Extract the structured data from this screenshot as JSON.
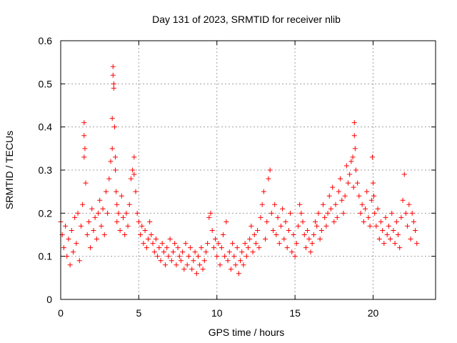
{
  "chart_data": {
    "type": "scatter",
    "title": "Day 131 of 2023, SRMTID for receiver nlib",
    "xlabel": "GPS time / hours",
    "ylabel": "SRMTID / TECUs",
    "xlim": [
      0,
      24
    ],
    "ylim": [
      0,
      0.6
    ],
    "xticks": [
      0,
      5,
      10,
      15,
      20
    ],
    "yticks": [
      0,
      0.1,
      0.2,
      0.3,
      0.4,
      0.5,
      0.6
    ],
    "xtick_labels": [
      "0",
      "5",
      "10",
      "15",
      "20"
    ],
    "ytick_labels": [
      "0",
      "0.1",
      "0.2",
      "0.3",
      "0.4",
      "0.5",
      "0.6"
    ],
    "grid": true,
    "marker": "+",
    "color": "#ff0000",
    "series": [
      {
        "name": "SRMTID",
        "x": [
          0.0,
          0.1,
          0.2,
          0.3,
          0.4,
          0.5,
          0.6,
          0.7,
          0.8,
          0.9,
          1.0,
          1.1,
          1.2,
          1.3,
          1.4,
          1.5,
          1.5,
          1.5,
          1.55,
          1.6,
          1.7,
          1.8,
          1.9,
          2.0,
          2.1,
          2.2,
          2.3,
          2.4,
          2.5,
          2.6,
          2.7,
          2.8,
          2.9,
          3.0,
          3.1,
          3.2,
          3.3,
          3.3,
          3.35,
          3.35,
          3.4,
          3.4,
          3.45,
          3.5,
          3.5,
          3.55,
          3.6,
          3.6,
          3.7,
          3.8,
          3.9,
          4.0,
          4.1,
          4.2,
          4.3,
          4.4,
          4.5,
          4.6,
          4.7,
          4.7,
          4.8,
          4.9,
          5.0,
          5.1,
          5.2,
          5.3,
          5.4,
          5.5,
          5.6,
          5.7,
          5.8,
          5.9,
          6.0,
          6.1,
          6.2,
          6.3,
          6.4,
          6.5,
          6.6,
          6.7,
          6.8,
          6.9,
          7.0,
          7.1,
          7.2,
          7.3,
          7.4,
          7.5,
          7.6,
          7.7,
          7.8,
          7.9,
          8.0,
          8.1,
          8.2,
          8.3,
          8.4,
          8.5,
          8.6,
          8.7,
          8.8,
          8.9,
          9.0,
          9.1,
          9.2,
          9.3,
          9.4,
          9.5,
          9.6,
          9.7,
          9.8,
          9.9,
          10.0,
          10.1,
          10.2,
          10.3,
          10.4,
          10.5,
          10.6,
          10.7,
          10.8,
          10.9,
          11.0,
          11.1,
          11.2,
          11.3,
          11.4,
          11.5,
          11.6,
          11.7,
          11.8,
          11.9,
          12.0,
          12.1,
          12.2,
          12.3,
          12.4,
          12.5,
          12.6,
          12.7,
          12.8,
          12.9,
          13.0,
          13.1,
          13.2,
          13.3,
          13.4,
          13.5,
          13.6,
          13.7,
          13.8,
          13.9,
          14.0,
          14.1,
          14.2,
          14.3,
          14.4,
          14.5,
          14.6,
          14.7,
          14.8,
          14.9,
          15.0,
          15.1,
          15.2,
          15.3,
          15.4,
          15.5,
          15.6,
          15.7,
          15.8,
          15.9,
          16.0,
          16.1,
          16.2,
          16.3,
          16.4,
          16.5,
          16.6,
          16.7,
          16.8,
          16.9,
          17.0,
          17.1,
          17.2,
          17.3,
          17.4,
          17.5,
          17.6,
          17.7,
          17.8,
          17.9,
          18.0,
          18.1,
          18.2,
          18.3,
          18.4,
          18.5,
          18.6,
          18.7,
          18.75,
          18.8,
          18.8,
          18.85,
          18.9,
          19.0,
          19.1,
          19.2,
          19.3,
          19.4,
          19.5,
          19.6,
          19.7,
          19.8,
          19.9,
          19.95,
          20.0,
          20.05,
          20.1,
          20.2,
          20.3,
          20.4,
          20.5,
          20.6,
          20.7,
          20.8,
          20.9,
          21.0,
          21.1,
          21.2,
          21.3,
          21.4,
          21.5,
          21.6,
          21.7,
          21.8,
          21.9,
          22.0,
          22.1,
          22.2,
          22.3,
          22.4,
          22.5,
          22.6,
          22.7,
          22.8
        ],
        "y": [
          0.18,
          0.15,
          0.12,
          0.17,
          0.1,
          0.14,
          0.08,
          0.16,
          0.11,
          0.19,
          0.13,
          0.2,
          0.09,
          0.17,
          0.22,
          0.41,
          0.38,
          0.33,
          0.35,
          0.27,
          0.15,
          0.18,
          0.12,
          0.21,
          0.16,
          0.19,
          0.14,
          0.2,
          0.23,
          0.17,
          0.21,
          0.15,
          0.25,
          0.2,
          0.28,
          0.32,
          0.35,
          0.42,
          0.54,
          0.52,
          0.5,
          0.49,
          0.4,
          0.33,
          0.3,
          0.25,
          0.22,
          0.18,
          0.2,
          0.16,
          0.24,
          0.19,
          0.15,
          0.2,
          0.17,
          0.22,
          0.28,
          0.3,
          0.29,
          0.33,
          0.25,
          0.2,
          0.18,
          0.15,
          0.17,
          0.13,
          0.16,
          0.12,
          0.14,
          0.18,
          0.15,
          0.13,
          0.11,
          0.14,
          0.1,
          0.12,
          0.09,
          0.13,
          0.11,
          0.08,
          0.12,
          0.1,
          0.14,
          0.09,
          0.11,
          0.13,
          0.08,
          0.12,
          0.1,
          0.09,
          0.11,
          0.07,
          0.13,
          0.08,
          0.1,
          0.12,
          0.07,
          0.09,
          0.11,
          0.06,
          0.1,
          0.08,
          0.12,
          0.07,
          0.09,
          0.11,
          0.13,
          0.19,
          0.2,
          0.16,
          0.12,
          0.14,
          0.1,
          0.13,
          0.08,
          0.12,
          0.15,
          0.1,
          0.18,
          0.09,
          0.11,
          0.07,
          0.13,
          0.1,
          0.08,
          0.12,
          0.06,
          0.09,
          0.11,
          0.08,
          0.13,
          0.1,
          0.12,
          0.14,
          0.17,
          0.11,
          0.15,
          0.13,
          0.16,
          0.12,
          0.19,
          0.22,
          0.25,
          0.14,
          0.18,
          0.28,
          0.3,
          0.2,
          0.16,
          0.22,
          0.15,
          0.19,
          0.13,
          0.17,
          0.21,
          0.14,
          0.18,
          0.12,
          0.16,
          0.2,
          0.11,
          0.15,
          0.1,
          0.13,
          0.17,
          0.22,
          0.2,
          0.18,
          0.15,
          0.12,
          0.16,
          0.14,
          0.11,
          0.13,
          0.15,
          0.18,
          0.17,
          0.2,
          0.14,
          0.16,
          0.22,
          0.19,
          0.17,
          0.2,
          0.24,
          0.21,
          0.26,
          0.18,
          0.22,
          0.19,
          0.25,
          0.28,
          0.23,
          0.2,
          0.24,
          0.31,
          0.27,
          0.29,
          0.32,
          0.33,
          0.26,
          0.41,
          0.38,
          0.35,
          0.3,
          0.27,
          0.24,
          0.2,
          0.22,
          0.18,
          0.21,
          0.25,
          0.19,
          0.17,
          0.23,
          0.33,
          0.27,
          0.24,
          0.2,
          0.17,
          0.21,
          0.14,
          0.18,
          0.16,
          0.13,
          0.19,
          0.15,
          0.17,
          0.14,
          0.2,
          0.16,
          0.13,
          0.18,
          0.15,
          0.12,
          0.19,
          0.23,
          0.29,
          0.2,
          0.17,
          0.22,
          0.14,
          0.2,
          0.18,
          0.16,
          0.13
        ]
      }
    ]
  }
}
